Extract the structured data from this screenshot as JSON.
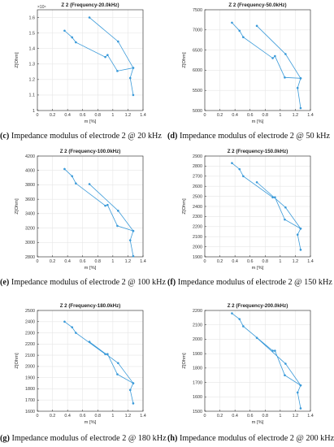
{
  "colors": {
    "series": "#3a9ad9",
    "axis": "#262626",
    "grid": "#e6e6e6"
  },
  "chart_data": [
    {
      "type": "line",
      "title": "Z 2 (Frequency-20.0kHz)",
      "xlabel": "m [%]",
      "ylabel": "Z[Ohm]",
      "y_exponent": "×10⁴",
      "xlim": [
        0,
        1.4
      ],
      "ylim": [
        1.0,
        1.65
      ],
      "xticks": [
        0,
        0.2,
        0.4,
        0.6,
        0.8,
        1,
        1.2,
        1.4
      ],
      "yticks": [
        1,
        1.1,
        1.2,
        1.3,
        1.4,
        1.5,
        1.6
      ],
      "xtick_labels": [
        "0",
        "0.2",
        "0.4",
        "0.6",
        "0.8",
        "1",
        "1.2",
        "1.4"
      ],
      "ytick_labels": [
        "1",
        "1.1",
        "1.2",
        "1.3",
        "1.4",
        "1.5",
        "1.6"
      ],
      "grid": true,
      "series": [
        {
          "x": [
            0.36,
            0.46,
            0.51,
            0.9,
            0.93,
            1.06,
            1.27,
            1.07,
            0.69
          ],
          "y": [
            1.515,
            1.472,
            1.44,
            1.345,
            1.358,
            1.255,
            1.275,
            1.445,
            1.6
          ]
        },
        {
          "x": [
            1.27,
            1.23,
            1.27
          ],
          "y": [
            1.275,
            1.21,
            1.1
          ]
        }
      ],
      "caption_label": "(c)",
      "caption_text": " Impedance modulus of electrode 2 @ 20 kHz"
    },
    {
      "type": "line",
      "title": "Z 2 (Frequency-50.0kHz)",
      "xlabel": "m [%]",
      "ylabel": "Z[Ohm]",
      "xlim": [
        0,
        1.4
      ],
      "ylim": [
        5000,
        7500
      ],
      "xticks": [
        0,
        0.2,
        0.4,
        0.6,
        0.8,
        1,
        1.2,
        1.4
      ],
      "yticks": [
        5000,
        5500,
        6000,
        6500,
        7000,
        7500
      ],
      "xtick_labels": [
        "0",
        "0.2",
        "0.4",
        "0.6",
        "0.8",
        "1",
        "1.2",
        "1.4"
      ],
      "ytick_labels": [
        "5000",
        "5500",
        "6000",
        "6500",
        "7000",
        "7500"
      ],
      "grid": true,
      "series": [
        {
          "x": [
            0.36,
            0.46,
            0.51,
            0.9,
            0.93,
            1.06,
            1.27,
            1.07,
            0.69
          ],
          "y": [
            7180,
            6980,
            6820,
            6300,
            6350,
            5820,
            5800,
            6400,
            7100
          ]
        },
        {
          "x": [
            1.27,
            1.23,
            1.27
          ],
          "y": [
            5800,
            5560,
            5060
          ]
        }
      ],
      "caption_label": "(d)",
      "caption_text": " Impedance modulus of electrode 2 @ 50 kHz"
    },
    {
      "type": "line",
      "title": "Z 2 (Frequency-100.0kHz)",
      "xlabel": "m [%]",
      "ylabel": "Z[Ohm]",
      "xlim": [
        0,
        1.4
      ],
      "ylim": [
        2800,
        4200
      ],
      "xticks": [
        0,
        0.2,
        0.4,
        0.6,
        0.8,
        1,
        1.2,
        1.4
      ],
      "yticks": [
        2800,
        3000,
        3200,
        3400,
        3600,
        3800,
        4000,
        4200
      ],
      "xtick_labels": [
        "0",
        "0.2",
        "0.4",
        "0.6",
        "0.8",
        "1",
        "1.2",
        "1.4"
      ],
      "ytick_labels": [
        "2800",
        "3000",
        "3200",
        "3400",
        "3600",
        "3800",
        "4000",
        "4200"
      ],
      "grid": true,
      "series": [
        {
          "x": [
            0.36,
            0.46,
            0.51,
            0.9,
            0.93,
            1.06,
            1.27,
            1.07,
            0.69
          ],
          "y": [
            4020,
            3920,
            3820,
            3510,
            3520,
            3230,
            3160,
            3440,
            3810
          ]
        },
        {
          "x": [
            1.27,
            1.23,
            1.27
          ],
          "y": [
            3160,
            3030,
            2810
          ]
        }
      ],
      "caption_label": "(e)",
      "caption_text": " Impedance modulus of electrode 2 @ 100 kHz"
    },
    {
      "type": "line",
      "title": "Z 2 (Frequency-150.0kHz)",
      "xlabel": "m [%]",
      "ylabel": "Z[Ohm]",
      "xlim": [
        0,
        1.4
      ],
      "ylim": [
        1900,
        2900
      ],
      "xticks": [
        0,
        0.2,
        0.4,
        0.6,
        0.8,
        1,
        1.2,
        1.4
      ],
      "yticks": [
        1900,
        2000,
        2100,
        2200,
        2300,
        2400,
        2500,
        2600,
        2700,
        2800,
        2900
      ],
      "xtick_labels": [
        "0",
        "0.2",
        "0.4",
        "0.6",
        "0.8",
        "1",
        "1.2",
        "1.4"
      ],
      "ytick_labels": [
        "1900",
        "2000",
        "2100",
        "2200",
        "2300",
        "2400",
        "2500",
        "2600",
        "2700",
        "2800",
        "2900"
      ],
      "grid": true,
      "series": [
        {
          "x": [
            0.36,
            0.46,
            0.51,
            0.9,
            0.93,
            1.06,
            1.27,
            1.07,
            0.69
          ],
          "y": [
            2830,
            2770,
            2700,
            2490,
            2490,
            2270,
            2180,
            2390,
            2640
          ]
        },
        {
          "x": [
            1.27,
            1.23,
            1.27
          ],
          "y": [
            2180,
            2120,
            1970
          ]
        }
      ],
      "caption_label": "(f)",
      "caption_text": " Impedance modulus of electrode 2 @ 150 kHz"
    },
    {
      "type": "line",
      "title": "Z 2 (Frequency-180.0kHz)",
      "xlabel": "m [%]",
      "ylabel": "Z[Ohm]",
      "xlim": [
        0,
        1.4
      ],
      "ylim": [
        1600,
        2500
      ],
      "xticks": [
        0,
        0.2,
        0.4,
        0.6,
        0.8,
        1,
        1.2,
        1.4
      ],
      "yticks": [
        1600,
        1700,
        1800,
        1900,
        2000,
        2100,
        2200,
        2300,
        2400,
        2500
      ],
      "xtick_labels": [
        "0",
        "0.2",
        "0.4",
        "0.6",
        "0.8",
        "1",
        "1.2",
        "1.4"
      ],
      "ytick_labels": [
        "1600",
        "1700",
        "1800",
        "1900",
        "2000",
        "2100",
        "2200",
        "2300",
        "2400",
        "2500"
      ],
      "grid": true,
      "series": [
        {
          "x": [
            0.36,
            0.46,
            0.51,
            0.9,
            0.93,
            1.06,
            1.27,
            1.07,
            0.69
          ],
          "y": [
            2400,
            2350,
            2300,
            2110,
            2110,
            1930,
            1850,
            2030,
            2220
          ]
        },
        {
          "x": [
            1.27,
            1.23,
            1.27
          ],
          "y": [
            1850,
            1790,
            1670
          ]
        }
      ],
      "caption_label": "(g)",
      "caption_text": " Impedance modulus of electrode 2 @ 180 kHz"
    },
    {
      "type": "line",
      "title": "Z 2 (Frequency-200.0kHz)",
      "xlabel": "m [%]",
      "ylabel": "Z[Ohm]",
      "xlim": [
        0,
        1.4
      ],
      "ylim": [
        1500,
        2200
      ],
      "xticks": [
        0,
        0.2,
        0.4,
        0.6,
        0.8,
        1,
        1.2,
        1.4
      ],
      "yticks": [
        1500,
        1600,
        1700,
        1800,
        1900,
        2000,
        2100,
        2200
      ],
      "xtick_labels": [
        "0",
        "0.2",
        "0.4",
        "0.6",
        "0.8",
        "1",
        "1.2",
        "1.4"
      ],
      "ytick_labels": [
        "1500",
        "1600",
        "1700",
        "1800",
        "1900",
        "2000",
        "2100",
        "2200"
      ],
      "grid": true,
      "series": [
        {
          "x": [
            0.36,
            0.46,
            0.51,
            0.9,
            0.93,
            1.06,
            1.27,
            1.07,
            0.69
          ],
          "y": [
            2180,
            2140,
            2090,
            1920,
            1920,
            1750,
            1680,
            1830,
            2010
          ]
        },
        {
          "x": [
            1.27,
            1.23,
            1.27
          ],
          "y": [
            1680,
            1630,
            1520
          ]
        }
      ],
      "caption_label": "(h)",
      "caption_text": " Impedance modulus of electrode 2 @ 200 kHz"
    }
  ]
}
